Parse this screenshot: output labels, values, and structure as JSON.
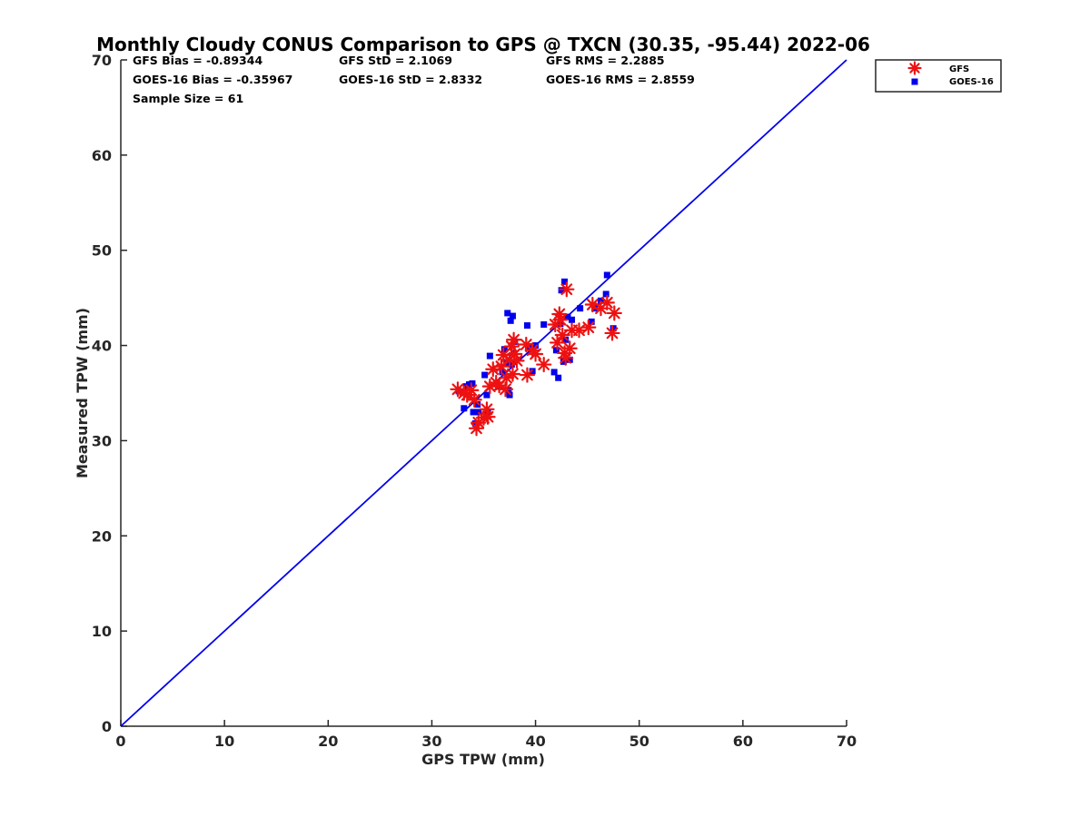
{
  "chart_data": {
    "type": "scatter",
    "title": "Monthly Cloudy CONUS Comparison to GPS @ TXCN (30.35, -95.44) 2022-06",
    "xlabel": "GPS TPW (mm)",
    "ylabel": "Measured TPW (mm)",
    "xlim": [
      0,
      70
    ],
    "ylim": [
      0,
      70
    ],
    "xticks": [
      "0",
      "10",
      "20",
      "30",
      "40",
      "50",
      "60",
      "70"
    ],
    "yticks": [
      "0",
      "10",
      "20",
      "30",
      "40",
      "50",
      "60",
      "70"
    ],
    "grid": false,
    "legend_position": "top-right outside",
    "stats": [
      [
        "GFS Bias = -0.89344",
        "GFS StD = 2.1069",
        "GFS RMS = 2.2885"
      ],
      [
        "GOES-16 Bias = -0.35967",
        "GOES-16 StD = 2.8332",
        "GOES-16 RMS = 2.8559"
      ],
      [
        "Sample Size = 61"
      ]
    ],
    "reference_line": {
      "name": "1:1",
      "color": "#0000ee",
      "points": [
        [
          0,
          0
        ],
        [
          70,
          70
        ]
      ]
    },
    "series": [
      {
        "name": "GFS",
        "marker": "asterisk",
        "color": "#ee1111",
        "points": [
          [
            32.5,
            35.4
          ],
          [
            33.1,
            35.0
          ],
          [
            33.4,
            34.8
          ],
          [
            33.8,
            35.3
          ],
          [
            34.1,
            34.3
          ],
          [
            34.3,
            31.3
          ],
          [
            34.5,
            31.9
          ],
          [
            35.0,
            32.4
          ],
          [
            35.3,
            33.3
          ],
          [
            35.4,
            32.5
          ],
          [
            35.6,
            35.7
          ],
          [
            35.9,
            37.5
          ],
          [
            36.2,
            36.1
          ],
          [
            36.5,
            35.8
          ],
          [
            36.7,
            37.8
          ],
          [
            36.9,
            39.0
          ],
          [
            37.1,
            35.4
          ],
          [
            37.2,
            36.6
          ],
          [
            37.5,
            38.5
          ],
          [
            37.7,
            39.9
          ],
          [
            37.8,
            37.0
          ],
          [
            37.9,
            40.6
          ],
          [
            38.0,
            39.1
          ],
          [
            38.2,
            38.4
          ],
          [
            39.1,
            40.1
          ],
          [
            39.2,
            36.9
          ],
          [
            39.7,
            39.5
          ],
          [
            40.0,
            39.1
          ],
          [
            40.8,
            38.0
          ],
          [
            41.9,
            42.2
          ],
          [
            42.1,
            40.3
          ],
          [
            42.3,
            43.3
          ],
          [
            42.4,
            42.7
          ],
          [
            42.6,
            41.1
          ],
          [
            42.8,
            39.2
          ],
          [
            42.9,
            38.7
          ],
          [
            43.0,
            45.9
          ],
          [
            43.3,
            39.7
          ],
          [
            43.5,
            41.6
          ],
          [
            44.2,
            41.6
          ],
          [
            45.1,
            41.9
          ],
          [
            45.5,
            44.3
          ],
          [
            46.3,
            43.9
          ],
          [
            46.9,
            44.5
          ],
          [
            47.4,
            41.3
          ],
          [
            47.6,
            43.4
          ]
        ]
      },
      {
        "name": "GOES-16",
        "marker": "square",
        "color": "#0000ee",
        "points": [
          [
            32.6,
            35.2
          ],
          [
            33.1,
            33.4
          ],
          [
            33.3,
            35.7
          ],
          [
            33.6,
            35.9
          ],
          [
            33.9,
            36.0
          ],
          [
            34.0,
            33.0
          ],
          [
            34.2,
            31.8
          ],
          [
            34.4,
            33.8
          ],
          [
            34.5,
            33.0
          ],
          [
            35.1,
            36.9
          ],
          [
            35.3,
            34.8
          ],
          [
            35.4,
            33.0
          ],
          [
            35.6,
            38.9
          ],
          [
            36.4,
            35.7
          ],
          [
            36.8,
            37.2
          ],
          [
            37.0,
            39.6
          ],
          [
            37.2,
            38.2
          ],
          [
            37.3,
            43.4
          ],
          [
            37.4,
            35.3
          ],
          [
            37.5,
            34.8
          ],
          [
            37.6,
            42.6
          ],
          [
            37.7,
            38.0
          ],
          [
            37.8,
            43.1
          ],
          [
            37.9,
            39.2
          ],
          [
            38.0,
            40.4
          ],
          [
            39.2,
            42.1
          ],
          [
            39.3,
            39.9
          ],
          [
            39.7,
            37.3
          ],
          [
            40.0,
            40.0
          ],
          [
            40.8,
            42.2
          ],
          [
            41.8,
            37.2
          ],
          [
            42.0,
            39.5
          ],
          [
            42.2,
            36.6
          ],
          [
            42.4,
            42.3
          ],
          [
            42.5,
            45.8
          ],
          [
            42.7,
            38.3
          ],
          [
            42.8,
            46.7
          ],
          [
            42.9,
            40.6
          ],
          [
            43.1,
            43.0
          ],
          [
            43.3,
            38.5
          ],
          [
            43.5,
            42.7
          ],
          [
            44.3,
            43.9
          ],
          [
            45.4,
            42.5
          ],
          [
            45.7,
            43.9
          ],
          [
            46.3,
            44.7
          ],
          [
            46.8,
            45.4
          ],
          [
            46.9,
            47.4
          ],
          [
            47.5,
            41.8
          ]
        ]
      }
    ]
  }
}
